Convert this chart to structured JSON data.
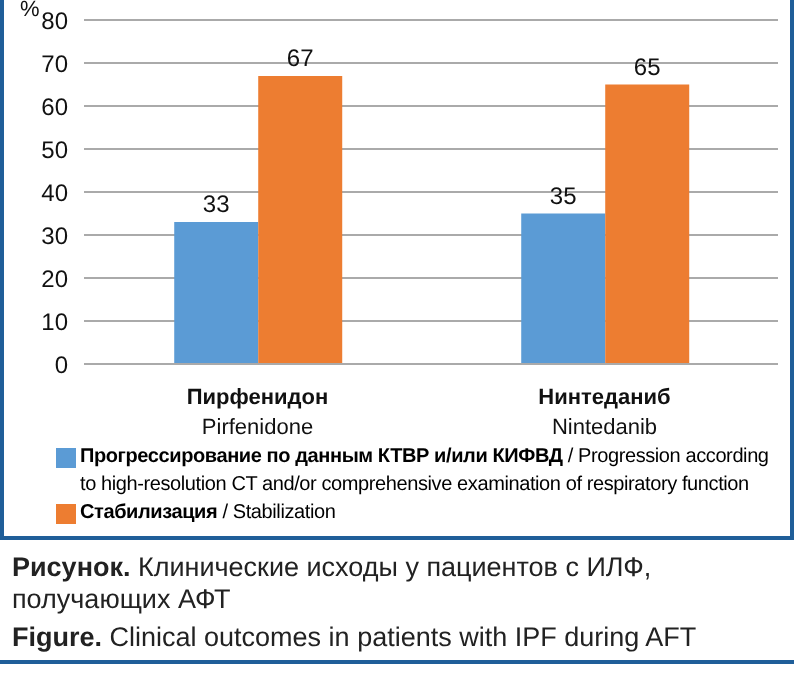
{
  "chart_data": {
    "type": "bar",
    "ylabel": "%",
    "categories": [
      "Пирфенидон\nPirfenidone",
      "Нинтеданиб\nNintedanib"
    ],
    "series": [
      {
        "name": "Прогрессирование по данным КТВР и/или КИФВД / Progression according to high-resolution CT and/or comprehensive examination of respiratory function",
        "color": "#5b9bd5",
        "values": [
          33,
          35
        ]
      },
      {
        "name": "Стабилизация / Stabilization",
        "color": "#ed7d31",
        "values": [
          67,
          65
        ]
      }
    ],
    "ylim": [
      0,
      80
    ],
    "yticks": [
      0,
      10,
      20,
      30,
      40,
      50,
      60,
      70,
      80
    ],
    "grid": "y",
    "legend": "bottom",
    "data_labels": true,
    "annotations": [
      "Рисунок. Клинические исходы у пациентов с ИЛФ, получающих АФТ",
      "Figure. Clinical outcomes in patients with IPF during AFT"
    ]
  }
}
